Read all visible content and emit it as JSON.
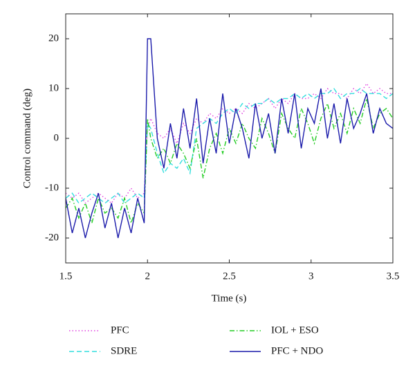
{
  "chart_data": {
    "type": "line",
    "xlabel": "Time (s)",
    "ylabel": "Control command (deg)",
    "xlim": [
      1.5,
      3.5
    ],
    "xticks": [
      1.5,
      2,
      2.5,
      3,
      3.5
    ],
    "ylim": [
      -25,
      25
    ],
    "yticks": [
      -20,
      -10,
      0,
      10,
      20
    ],
    "grid": false,
    "legend": "bottom",
    "x": [
      1.5,
      1.54,
      1.58,
      1.62,
      1.66,
      1.7,
      1.74,
      1.78,
      1.82,
      1.86,
      1.9,
      1.94,
      1.98,
      2.0,
      2.02,
      2.06,
      2.1,
      2.14,
      2.18,
      2.22,
      2.26,
      2.3,
      2.34,
      2.38,
      2.42,
      2.46,
      2.5,
      2.54,
      2.58,
      2.62,
      2.66,
      2.7,
      2.74,
      2.78,
      2.82,
      2.86,
      2.9,
      2.94,
      2.98,
      3.02,
      3.06,
      3.1,
      3.14,
      3.18,
      3.22,
      3.26,
      3.3,
      3.34,
      3.38,
      3.42,
      3.46,
      3.5
    ],
    "series": [
      {
        "name": "PFC",
        "color": "#e040e0",
        "linestyle": "dotted",
        "values": [
          -11,
          -12,
          -11,
          -13,
          -12,
          -11,
          -12,
          -13,
          -11,
          -12,
          -10,
          -12,
          -11,
          2,
          4,
          1,
          0,
          2,
          -1,
          3,
          1,
          4,
          3,
          5,
          4,
          6,
          5,
          6,
          5,
          7,
          6,
          7,
          8,
          6,
          8,
          7,
          9,
          8,
          8,
          9,
          8,
          10,
          9,
          9,
          8,
          10,
          9,
          11,
          9,
          10,
          9,
          9
        ]
      },
      {
        "name": "SDRE",
        "color": "#33dede",
        "linestyle": "dashed",
        "values": [
          -12,
          -11,
          -13,
          -12,
          -11,
          -12,
          -13,
          -12,
          -11,
          -13,
          -12,
          -11,
          -12,
          3,
          2,
          -3,
          -7,
          -5,
          -6,
          -4,
          -7,
          2,
          3,
          4,
          3,
          5,
          6,
          5,
          7,
          6,
          7,
          7,
          8,
          7,
          8,
          8,
          9,
          8,
          9,
          8,
          9,
          9,
          10,
          8,
          9,
          9,
          10,
          9,
          9,
          9,
          8,
          9
        ]
      },
      {
        "name": "IOL + ESO",
        "color": "#22cc22",
        "linestyle": "dashdot",
        "values": [
          -14,
          -12,
          -16,
          -13,
          -17,
          -12,
          -15,
          -14,
          -16,
          -12,
          -17,
          -13,
          -15,
          4,
          0,
          -4,
          -2,
          -5,
          -1,
          -3,
          -6,
          0,
          -8,
          -2,
          1,
          -3,
          2,
          -1,
          3,
          0,
          -2,
          4,
          1,
          -3,
          5,
          2,
          0,
          6,
          3,
          -1,
          4,
          7,
          2,
          5,
          1,
          6,
          3,
          8,
          2,
          5,
          6,
          4
        ]
      },
      {
        "name": "PFC + NDO",
        "color": "#1a1aaa",
        "linestyle": "solid",
        "values": [
          -12,
          -19,
          -14,
          -20,
          -15,
          -11,
          -18,
          -13,
          -20,
          -14,
          -19,
          -12,
          -17,
          20,
          20,
          0,
          -6,
          3,
          -4,
          6,
          -2,
          8,
          -5,
          4,
          -3,
          9,
          -1,
          6,
          2,
          -4,
          7,
          0,
          5,
          -3,
          8,
          1,
          9,
          -2,
          6,
          3,
          10,
          0,
          7,
          -1,
          8,
          2,
          5,
          9,
          1,
          6,
          3,
          2
        ]
      }
    ]
  }
}
